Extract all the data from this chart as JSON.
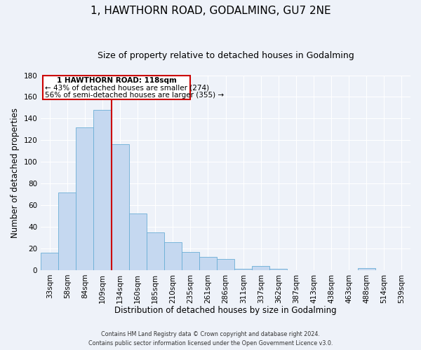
{
  "title": "1, HAWTHORN ROAD, GODALMING, GU7 2NE",
  "subtitle": "Size of property relative to detached houses in Godalming",
  "xlabel": "Distribution of detached houses by size in Godalming",
  "ylabel": "Number of detached properties",
  "bin_labels": [
    "33sqm",
    "58sqm",
    "84sqm",
    "109sqm",
    "134sqm",
    "160sqm",
    "185sqm",
    "210sqm",
    "235sqm",
    "261sqm",
    "286sqm",
    "311sqm",
    "337sqm",
    "362sqm",
    "387sqm",
    "413sqm",
    "438sqm",
    "463sqm",
    "488sqm",
    "514sqm",
    "539sqm"
  ],
  "bar_heights": [
    16,
    72,
    132,
    148,
    116,
    52,
    35,
    26,
    17,
    12,
    10,
    1,
    4,
    1,
    0,
    0,
    0,
    0,
    2,
    0,
    0
  ],
  "bar_color": "#c5d8f0",
  "bar_edge_color": "#6aaed6",
  "vline_color": "#cc0000",
  "annotation_title": "1 HAWTHORN ROAD: 118sqm",
  "annotation_line1": "← 43% of detached houses are smaller (274)",
  "annotation_line2": "56% of semi-detached houses are larger (355) →",
  "annotation_box_color": "#cc0000",
  "ylim": [
    0,
    180
  ],
  "yticks": [
    0,
    20,
    40,
    60,
    80,
    100,
    120,
    140,
    160,
    180
  ],
  "footer_line1": "Contains HM Land Registry data © Crown copyright and database right 2024.",
  "footer_line2": "Contains public sector information licensed under the Open Government Licence v3.0.",
  "bg_color": "#eef2f9",
  "grid_color": "#ffffff",
  "title_fontsize": 11,
  "subtitle_fontsize": 9,
  "axis_label_fontsize": 8.5,
  "tick_fontsize": 7.5
}
